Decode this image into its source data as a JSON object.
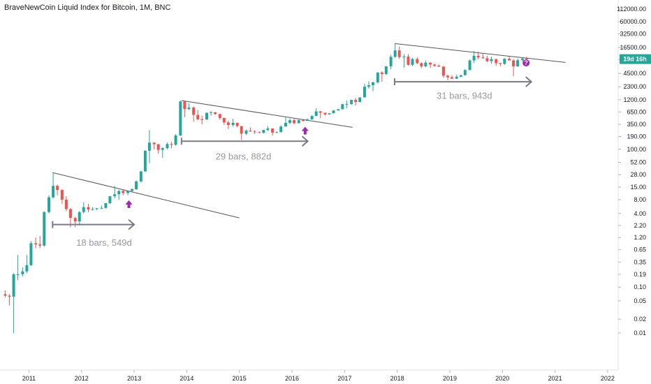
{
  "chart_data": {
    "type": "candlestick",
    "title": "BraveNewCoin Liquid Index for Bitcoin, 1M, BNC",
    "y_scale": "log",
    "y_ticks": [
      "112000.00",
      "60000.00",
      "32500.00",
      "16500.00",
      "9000.00",
      "4500.00",
      "2300.00",
      "1200.00",
      "650.00",
      "350.00",
      "190.00",
      "100.00",
      "52.00",
      "28.00",
      "15.00",
      "8.00",
      "4.00",
      "2.20",
      "1.20",
      "0.65",
      "0.35",
      "0.19",
      "0.10",
      "0.05",
      "0.02",
      "0.01"
    ],
    "y_tick_values": [
      112000,
      60000,
      32500,
      16500,
      9000,
      4500,
      2300,
      1200,
      650,
      350,
      190,
      100,
      52,
      28,
      15,
      8,
      4,
      2.2,
      1.2,
      0.65,
      0.35,
      0.19,
      0.1,
      0.05,
      0.02,
      0.01
    ],
    "x_ticks": [
      "2011",
      "2012",
      "2013",
      "2014",
      "2015",
      "2016",
      "2017",
      "2018",
      "2019",
      "2020",
      "2021",
      "2022"
    ],
    "x_tick_years": [
      2011,
      2012,
      2013,
      2014,
      2015,
      2016,
      2017,
      2018,
      2019,
      2020,
      2021,
      2022
    ],
    "x_range": [
      2010.45,
      2022.2
    ],
    "y_range": [
      0.0035,
      160000
    ],
    "up_color": "#26a69a",
    "down_color": "#ef5350",
    "price_badge": {
      "label": "19d 16h",
      "value": 9200,
      "color": "#26a69a"
    },
    "trendlines": [
      {
        "x1": 2011.45,
        "y1": 31,
        "x2": 2015.0,
        "y2": 3.2
      },
      {
        "x1": 2013.9,
        "y1": 1150,
        "x2": 2017.15,
        "y2": 300
      },
      {
        "x1": 2017.95,
        "y1": 20000,
        "x2": 2021.2,
        "y2": 7800
      }
    ],
    "measurements": [
      {
        "x1": 2011.45,
        "x2": 2013.0,
        "y": 2.3,
        "label": "18 bars, 549d",
        "label_x": 2011.9,
        "label_y": 0.8
      },
      {
        "x1": 2013.9,
        "x2": 2016.3,
        "y": 150,
        "label": "29 bars, 882d",
        "label_x": 2014.55,
        "label_y": 60
      },
      {
        "x1": 2017.95,
        "x2": 2020.55,
        "y": 2950,
        "label": "31 bars, 943d",
        "label_x": 2018.75,
        "label_y": 1250
      }
    ],
    "signal_arrows": [
      {
        "x": 2012.9,
        "y": 6.3
      },
      {
        "x": 2016.25,
        "y": 250
      }
    ],
    "question_marker": {
      "x": 2020.45,
      "y": 7600,
      "color": "#9c27b0"
    },
    "candles": [
      {
        "t": 2010.55,
        "o": 0.07,
        "h": 0.085,
        "l": 0.06,
        "c": 0.065
      },
      {
        "t": 2010.63,
        "o": 0.065,
        "h": 0.07,
        "l": 0.04,
        "c": 0.062
      },
      {
        "t": 2010.71,
        "o": 0.062,
        "h": 0.2,
        "l": 0.01,
        "c": 0.19
      },
      {
        "t": 2010.79,
        "o": 0.19,
        "h": 0.5,
        "l": 0.14,
        "c": 0.19
      },
      {
        "t": 2010.88,
        "o": 0.19,
        "h": 0.27,
        "l": 0.17,
        "c": 0.22
      },
      {
        "t": 2010.96,
        "o": 0.22,
        "h": 0.5,
        "l": 0.2,
        "c": 0.3
      },
      {
        "t": 2011.04,
        "o": 0.3,
        "h": 1.0,
        "l": 0.29,
        "c": 0.9
      },
      {
        "t": 2011.13,
        "o": 0.9,
        "h": 1.2,
        "l": 0.7,
        "c": 0.85
      },
      {
        "t": 2011.21,
        "o": 0.85,
        "h": 1.3,
        "l": 0.7,
        "c": 0.8
      },
      {
        "t": 2011.29,
        "o": 0.8,
        "h": 4.5,
        "l": 0.75,
        "c": 4.3
      },
      {
        "t": 2011.38,
        "o": 4.3,
        "h": 10.0,
        "l": 4.0,
        "c": 9.0
      },
      {
        "t": 2011.46,
        "o": 9.0,
        "h": 31.0,
        "l": 8.5,
        "c": 16.0
      },
      {
        "t": 2011.54,
        "o": 16.0,
        "h": 17.0,
        "l": 10.0,
        "c": 13.0
      },
      {
        "t": 2011.63,
        "o": 13.0,
        "h": 13.5,
        "l": 6.5,
        "c": 8.0
      },
      {
        "t": 2011.71,
        "o": 8.0,
        "h": 9.5,
        "l": 4.5,
        "c": 5.0
      },
      {
        "t": 2011.79,
        "o": 5.0,
        "h": 5.2,
        "l": 2.0,
        "c": 3.2
      },
      {
        "t": 2011.88,
        "o": 3.2,
        "h": 3.4,
        "l": 2.0,
        "c": 2.7
      },
      {
        "t": 2011.96,
        "o": 2.7,
        "h": 4.5,
        "l": 2.2,
        "c": 4.3
      },
      {
        "t": 2012.04,
        "o": 4.3,
        "h": 7.0,
        "l": 4.0,
        "c": 5.5
      },
      {
        "t": 2012.13,
        "o": 5.5,
        "h": 6.5,
        "l": 4.3,
        "c": 4.9
      },
      {
        "t": 2012.21,
        "o": 4.9,
        "h": 5.5,
        "l": 4.6,
        "c": 5.0
      },
      {
        "t": 2012.29,
        "o": 5.0,
        "h": 5.3,
        "l": 4.7,
        "c": 5.2
      },
      {
        "t": 2012.38,
        "o": 5.2,
        "h": 6.0,
        "l": 5.0,
        "c": 5.3
      },
      {
        "t": 2012.46,
        "o": 5.3,
        "h": 6.8,
        "l": 5.1,
        "c": 6.7
      },
      {
        "t": 2012.54,
        "o": 6.7,
        "h": 9.0,
        "l": 6.5,
        "c": 9.5
      },
      {
        "t": 2012.63,
        "o": 9.5,
        "h": 16.0,
        "l": 8.5,
        "c": 10.5
      },
      {
        "t": 2012.71,
        "o": 10.5,
        "h": 13.0,
        "l": 8.0,
        "c": 12.4
      },
      {
        "t": 2012.79,
        "o": 12.4,
        "h": 13.0,
        "l": 10.0,
        "c": 11.2
      },
      {
        "t": 2012.88,
        "o": 11.2,
        "h": 12.5,
        "l": 10.0,
        "c": 12.4
      },
      {
        "t": 2012.96,
        "o": 12.4,
        "h": 14.0,
        "l": 12.0,
        "c": 13.5
      },
      {
        "t": 2013.04,
        "o": 13.5,
        "h": 21.0,
        "l": 13.0,
        "c": 20.0
      },
      {
        "t": 2013.13,
        "o": 20.0,
        "h": 34.0,
        "l": 19.0,
        "c": 33.0
      },
      {
        "t": 2013.21,
        "o": 33.0,
        "h": 95.0,
        "l": 32.0,
        "c": 93.0
      },
      {
        "t": 2013.29,
        "o": 93.0,
        "h": 260.0,
        "l": 50.0,
        "c": 140.0
      },
      {
        "t": 2013.38,
        "o": 140.0,
        "h": 140.0,
        "l": 100.0,
        "c": 129.0
      },
      {
        "t": 2013.46,
        "o": 129.0,
        "h": 130.0,
        "l": 80.0,
        "c": 97.0
      },
      {
        "t": 2013.54,
        "o": 97.0,
        "h": 110.0,
        "l": 65.0,
        "c": 106.0
      },
      {
        "t": 2013.63,
        "o": 106.0,
        "h": 140.0,
        "l": 100.0,
        "c": 130.0
      },
      {
        "t": 2013.71,
        "o": 130.0,
        "h": 145.0,
        "l": 105.0,
        "c": 125.0
      },
      {
        "t": 2013.79,
        "o": 125.0,
        "h": 215.0,
        "l": 120.0,
        "c": 200.0
      },
      {
        "t": 2013.88,
        "o": 200.0,
        "h": 1150.0,
        "l": 195.0,
        "c": 1100.0
      },
      {
        "t": 2013.96,
        "o": 1100.0,
        "h": 1150.0,
        "l": 500.0,
        "c": 750.0
      },
      {
        "t": 2014.04,
        "o": 750.0,
        "h": 1000.0,
        "l": 720.0,
        "c": 810.0
      },
      {
        "t": 2014.13,
        "o": 810.0,
        "h": 860.0,
        "l": 400.0,
        "c": 560.0
      },
      {
        "t": 2014.21,
        "o": 560.0,
        "h": 720.0,
        "l": 430.0,
        "c": 450.0
      },
      {
        "t": 2014.29,
        "o": 450.0,
        "h": 540.0,
        "l": 350.0,
        "c": 445.0
      },
      {
        "t": 2014.38,
        "o": 445.0,
        "h": 640.0,
        "l": 430.0,
        "c": 620.0
      },
      {
        "t": 2014.46,
        "o": 620.0,
        "h": 680.0,
        "l": 540.0,
        "c": 640.0
      },
      {
        "t": 2014.54,
        "o": 640.0,
        "h": 650.0,
        "l": 560.0,
        "c": 585.0
      },
      {
        "t": 2014.63,
        "o": 585.0,
        "h": 600.0,
        "l": 440.0,
        "c": 480.0
      },
      {
        "t": 2014.71,
        "o": 480.0,
        "h": 490.0,
        "l": 340.0,
        "c": 385.0
      },
      {
        "t": 2014.79,
        "o": 385.0,
        "h": 420.0,
        "l": 275.0,
        "c": 338.0
      },
      {
        "t": 2014.88,
        "o": 338.0,
        "h": 460.0,
        "l": 310.0,
        "c": 378.0
      },
      {
        "t": 2014.96,
        "o": 378.0,
        "h": 380.0,
        "l": 300.0,
        "c": 320.0
      },
      {
        "t": 2015.04,
        "o": 320.0,
        "h": 320.0,
        "l": 160.0,
        "c": 218.0
      },
      {
        "t": 2015.13,
        "o": 218.0,
        "h": 270.0,
        "l": 205.0,
        "c": 254.0
      },
      {
        "t": 2015.21,
        "o": 254.0,
        "h": 300.0,
        "l": 240.0,
        "c": 244.0
      },
      {
        "t": 2015.29,
        "o": 244.0,
        "h": 260.0,
        "l": 215.0,
        "c": 236.0
      },
      {
        "t": 2015.38,
        "o": 236.0,
        "h": 245.0,
        "l": 225.0,
        "c": 230.0
      },
      {
        "t": 2015.46,
        "o": 230.0,
        "h": 265.0,
        "l": 220.0,
        "c": 263.0
      },
      {
        "t": 2015.54,
        "o": 263.0,
        "h": 320.0,
        "l": 250.0,
        "c": 284.0
      },
      {
        "t": 2015.63,
        "o": 284.0,
        "h": 285.0,
        "l": 200.0,
        "c": 230.0
      },
      {
        "t": 2015.71,
        "o": 230.0,
        "h": 245.0,
        "l": 225.0,
        "c": 236.0
      },
      {
        "t": 2015.79,
        "o": 236.0,
        "h": 330.0,
        "l": 235.0,
        "c": 313.0
      },
      {
        "t": 2015.88,
        "o": 313.0,
        "h": 500.0,
        "l": 310.0,
        "c": 377.0
      },
      {
        "t": 2015.96,
        "o": 377.0,
        "h": 470.0,
        "l": 350.0,
        "c": 430.0
      },
      {
        "t": 2016.04,
        "o": 430.0,
        "h": 460.0,
        "l": 350.0,
        "c": 370.0
      },
      {
        "t": 2016.13,
        "o": 370.0,
        "h": 440.0,
        "l": 365.0,
        "c": 435.0
      },
      {
        "t": 2016.21,
        "o": 435.0,
        "h": 440.0,
        "l": 400.0,
        "c": 416.0
      },
      {
        "t": 2016.29,
        "o": 416.0,
        "h": 470.0,
        "l": 412.0,
        "c": 448.0
      },
      {
        "t": 2016.38,
        "o": 448.0,
        "h": 550.0,
        "l": 440.0,
        "c": 530.0
      },
      {
        "t": 2016.46,
        "o": 530.0,
        "h": 780.0,
        "l": 530.0,
        "c": 670.0
      },
      {
        "t": 2016.54,
        "o": 670.0,
        "h": 680.0,
        "l": 480.0,
        "c": 624.0
      },
      {
        "t": 2016.63,
        "o": 624.0,
        "h": 630.0,
        "l": 540.0,
        "c": 575.0
      },
      {
        "t": 2016.71,
        "o": 575.0,
        "h": 615.0,
        "l": 570.0,
        "c": 608.0
      },
      {
        "t": 2016.79,
        "o": 608.0,
        "h": 710.0,
        "l": 605.0,
        "c": 700.0
      },
      {
        "t": 2016.88,
        "o": 700.0,
        "h": 755.0,
        "l": 695.0,
        "c": 745.0
      },
      {
        "t": 2016.96,
        "o": 745.0,
        "h": 980.0,
        "l": 740.0,
        "c": 960.0
      },
      {
        "t": 2017.04,
        "o": 960.0,
        "h": 1150.0,
        "l": 780.0,
        "c": 970.0
      },
      {
        "t": 2017.13,
        "o": 970.0,
        "h": 1200.0,
        "l": 920.0,
        "c": 1190.0
      },
      {
        "t": 2017.21,
        "o": 1190.0,
        "h": 1300.0,
        "l": 900.0,
        "c": 1070.0
      },
      {
        "t": 2017.29,
        "o": 1070.0,
        "h": 1350.0,
        "l": 1050.0,
        "c": 1350.0
      },
      {
        "t": 2017.38,
        "o": 1350.0,
        "h": 2700.0,
        "l": 1340.0,
        "c": 2300.0
      },
      {
        "t": 2017.46,
        "o": 2300.0,
        "h": 3000.0,
        "l": 2100.0,
        "c": 2480.0
      },
      {
        "t": 2017.54,
        "o": 2480.0,
        "h": 2950.0,
        "l": 1850.0,
        "c": 2870.0
      },
      {
        "t": 2017.63,
        "o": 2870.0,
        "h": 4750.0,
        "l": 2700.0,
        "c": 4700.0
      },
      {
        "t": 2017.71,
        "o": 4700.0,
        "h": 5000.0,
        "l": 2950.0,
        "c": 4350.0
      },
      {
        "t": 2017.79,
        "o": 4350.0,
        "h": 6400.0,
        "l": 4100.0,
        "c": 6400.0
      },
      {
        "t": 2017.88,
        "o": 6400.0,
        "h": 11400.0,
        "l": 5500.0,
        "c": 10300.0
      },
      {
        "t": 2017.96,
        "o": 10300.0,
        "h": 20000.0,
        "l": 9800.0,
        "c": 14200.0
      },
      {
        "t": 2018.04,
        "o": 14200.0,
        "h": 17200.0,
        "l": 9300.0,
        "c": 10200.0
      },
      {
        "t": 2018.13,
        "o": 10200.0,
        "h": 11800.0,
        "l": 6000.0,
        "c": 10400.0
      },
      {
        "t": 2018.21,
        "o": 10400.0,
        "h": 11700.0,
        "l": 6600.0,
        "c": 6900.0
      },
      {
        "t": 2018.29,
        "o": 6900.0,
        "h": 9800.0,
        "l": 6500.0,
        "c": 9200.0
      },
      {
        "t": 2018.38,
        "o": 9200.0,
        "h": 10000.0,
        "l": 7100.0,
        "c": 7500.0
      },
      {
        "t": 2018.46,
        "o": 7500.0,
        "h": 7800.0,
        "l": 5800.0,
        "c": 6400.0
      },
      {
        "t": 2018.54,
        "o": 6400.0,
        "h": 8500.0,
        "l": 6100.0,
        "c": 7700.0
      },
      {
        "t": 2018.63,
        "o": 7700.0,
        "h": 7800.0,
        "l": 5900.0,
        "c": 7000.0
      },
      {
        "t": 2018.71,
        "o": 7000.0,
        "h": 7400.0,
        "l": 6200.0,
        "c": 6600.0
      },
      {
        "t": 2018.79,
        "o": 6600.0,
        "h": 7000.0,
        "l": 6200.0,
        "c": 6300.0
      },
      {
        "t": 2018.88,
        "o": 6300.0,
        "h": 6500.0,
        "l": 3600.0,
        "c": 4000.0
      },
      {
        "t": 2018.96,
        "o": 4000.0,
        "h": 4200.0,
        "l": 3200.0,
        "c": 3700.0
      },
      {
        "t": 2019.04,
        "o": 3700.0,
        "h": 4100.0,
        "l": 3400.0,
        "c": 3450.0
      },
      {
        "t": 2019.13,
        "o": 3450.0,
        "h": 4200.0,
        "l": 3400.0,
        "c": 3800.0
      },
      {
        "t": 2019.21,
        "o": 3800.0,
        "h": 4150.0,
        "l": 3700.0,
        "c": 4100.0
      },
      {
        "t": 2019.29,
        "o": 4100.0,
        "h": 5600.0,
        "l": 4050.0,
        "c": 5300.0
      },
      {
        "t": 2019.38,
        "o": 5300.0,
        "h": 9000.0,
        "l": 5250.0,
        "c": 8600.0
      },
      {
        "t": 2019.46,
        "o": 8600.0,
        "h": 13800.0,
        "l": 7500.0,
        "c": 10800.0
      },
      {
        "t": 2019.54,
        "o": 10800.0,
        "h": 13200.0,
        "l": 9100.0,
        "c": 10000.0
      },
      {
        "t": 2019.63,
        "o": 10000.0,
        "h": 12300.0,
        "l": 9400.0,
        "c": 9600.0
      },
      {
        "t": 2019.71,
        "o": 9600.0,
        "h": 10900.0,
        "l": 7800.0,
        "c": 8300.0
      },
      {
        "t": 2019.79,
        "o": 8300.0,
        "h": 10400.0,
        "l": 7300.0,
        "c": 9200.0
      },
      {
        "t": 2019.88,
        "o": 9200.0,
        "h": 9300.0,
        "l": 6500.0,
        "c": 7500.0
      },
      {
        "t": 2019.96,
        "o": 7500.0,
        "h": 7700.0,
        "l": 6400.0,
        "c": 7200.0
      },
      {
        "t": 2020.04,
        "o": 7200.0,
        "h": 9600.0,
        "l": 6900.0,
        "c": 9350.0
      },
      {
        "t": 2020.13,
        "o": 9350.0,
        "h": 10500.0,
        "l": 8500.0,
        "c": 8600.0
      },
      {
        "t": 2020.21,
        "o": 8600.0,
        "h": 9200.0,
        "l": 3900.0,
        "c": 6400.0
      },
      {
        "t": 2020.29,
        "o": 6400.0,
        "h": 9500.0,
        "l": 6200.0,
        "c": 8700.0
      },
      {
        "t": 2020.38,
        "o": 8700.0,
        "h": 10000.0,
        "l": 8100.0,
        "c": 9450.0
      },
      {
        "t": 2020.46,
        "o": 9450.0,
        "h": 10400.0,
        "l": 8900.0,
        "c": 9200.0
      }
    ]
  }
}
